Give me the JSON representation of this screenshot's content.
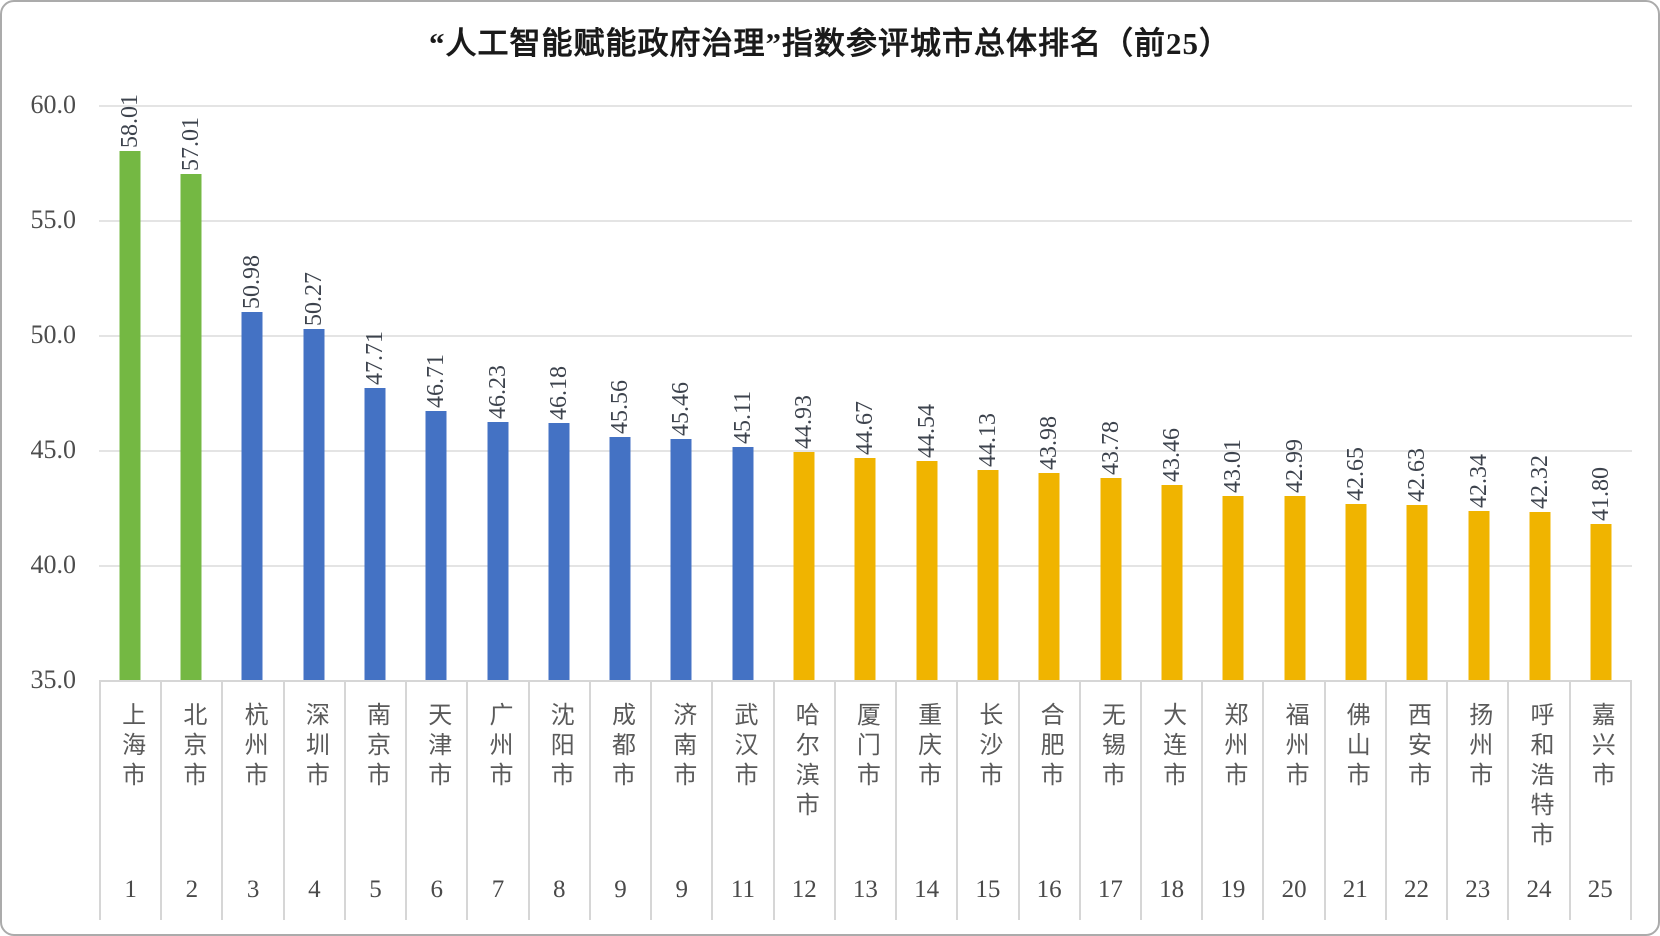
{
  "title": "“人工智能赋能政府治理”指数参评城市总体排名（前25）",
  "colors": {
    "green": "#74B843",
    "blue": "#4472C4",
    "gold": "#F0B400",
    "gridline": "#e4e4e4",
    "table_border": "#d6d6d6"
  },
  "chart_data": {
    "type": "bar",
    "title": "“人工智能赋能政府治理”指数参评城市总体排名（前25）",
    "xlabel": "",
    "ylabel": "",
    "ylim": [
      35,
      60
    ],
    "y_ticks": [
      "60.0",
      "55.0",
      "50.0",
      "45.0",
      "40.0",
      "35.0"
    ],
    "y_tick_values": [
      60,
      55,
      50,
      45,
      40,
      35
    ],
    "grid": "horizontal",
    "legend": "none",
    "categories": [
      "上海市",
      "北京市",
      "杭州市",
      "深圳市",
      "南京市",
      "天津市",
      "广州市",
      "沈阳市",
      "成都市",
      "济南市",
      "武汉市",
      "哈尔滨市",
      "厦门市",
      "重庆市",
      "长沙市",
      "合肥市",
      "无锡市",
      "大连市",
      "郑州市",
      "福州市",
      "佛山市",
      "西安市",
      "扬州市",
      "呼和浩特市",
      "嘉兴市"
    ],
    "ranks": [
      "1",
      "2",
      "3",
      "4",
      "5",
      "6",
      "7",
      "8",
      "9",
      "9",
      "11",
      "12",
      "13",
      "14",
      "15",
      "16",
      "17",
      "18",
      "19",
      "20",
      "21",
      "22",
      "23",
      "24",
      "25"
    ],
    "values": [
      58.01,
      57.01,
      50.98,
      50.27,
      47.71,
      46.71,
      46.23,
      46.18,
      45.56,
      45.46,
      45.11,
      44.93,
      44.67,
      44.54,
      44.13,
      43.98,
      43.78,
      43.46,
      43.01,
      42.99,
      42.65,
      42.63,
      42.34,
      42.32,
      41.8
    ],
    "value_labels": [
      "58.01",
      "57.01",
      "50.98",
      "50.27",
      "47.71",
      "46.71",
      "46.23",
      "46.18",
      "45.56",
      "45.46",
      "45.11",
      "44.93",
      "44.67",
      "44.54",
      "44.13",
      "43.98",
      "43.78",
      "43.46",
      "43.01",
      "42.99",
      "42.65",
      "42.63",
      "42.34",
      "42.32",
      "41.80"
    ],
    "bar_color_groups": [
      "green",
      "green",
      "blue",
      "blue",
      "blue",
      "blue",
      "blue",
      "blue",
      "blue",
      "blue",
      "blue",
      "gold",
      "gold",
      "gold",
      "gold",
      "gold",
      "gold",
      "gold",
      "gold",
      "gold",
      "gold",
      "gold",
      "gold",
      "gold",
      "gold"
    ]
  }
}
